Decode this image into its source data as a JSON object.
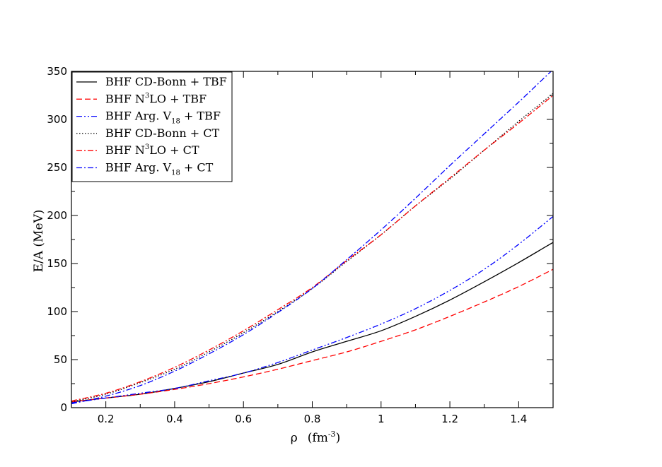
{
  "chart_data": {
    "type": "line",
    "xlabel": {
      "main": "ρ",
      "unit_prefix": "(fm",
      "unit_exp": "-3",
      "unit_suffix": ")"
    },
    "ylabel": "E/A  (MeV)",
    "xlim": [
      0.1,
      1.5
    ],
    "ylim": [
      0,
      350
    ],
    "xticks": [
      0.2,
      0.4,
      0.6,
      0.8,
      1.0,
      1.2,
      1.4
    ],
    "xtick_labels": [
      "0.2",
      "0.4",
      "0.6",
      "0.8",
      "1",
      "1.2",
      "1.4"
    ],
    "yticks": [
      0,
      50,
      100,
      150,
      200,
      250,
      300,
      350
    ],
    "ytick_labels": [
      "0",
      "50",
      "100",
      "150",
      "200",
      "250",
      "300",
      "350"
    ],
    "grid": false,
    "legend_position": "top-left",
    "x": [
      0.1,
      0.2,
      0.3,
      0.4,
      0.5,
      0.6,
      0.7,
      0.8,
      0.9,
      1.0,
      1.1,
      1.2,
      1.3,
      1.4,
      1.5
    ],
    "series": [
      {
        "name": "BHF CD-Bonn + TBF",
        "name_parts": [
          "BHF CD-Bonn + TBF",
          "",
          ""
        ],
        "sup": "",
        "sub": "",
        "color": "#000000",
        "dash": "solid",
        "values": [
          6,
          10,
          14,
          20,
          27,
          36,
          45,
          58,
          69,
          80,
          95,
          112,
          131,
          151,
          172
        ]
      },
      {
        "name": "BHF N3LO + TBF",
        "name_parts": [
          "BHF N",
          "LO + TBF",
          ""
        ],
        "sup": "3",
        "sub": "",
        "color": "#ff0000",
        "dash": "dashed",
        "values": [
          6,
          10,
          14,
          19,
          25,
          32,
          40,
          49,
          58,
          69,
          81,
          95,
          110,
          126,
          144
        ]
      },
      {
        "name": "BHF Arg. V18 + TBF",
        "name_parts": [
          "BHF Arg. V",
          "",
          " + TBF"
        ],
        "sup": "",
        "sub": "18",
        "color": "#0000ff",
        "dash": "dashdotdot",
        "values": [
          5,
          10,
          15,
          20,
          28,
          36,
          47,
          60,
          73,
          87,
          103,
          122,
          144,
          170,
          199
        ]
      },
      {
        "name": "BHF CD-Bonn + CT",
        "name_parts": [
          "BHF CD-Bonn + CT",
          "",
          ""
        ],
        "sup": "",
        "sub": "",
        "color": "#000000",
        "dash": "dotted",
        "values": [
          6,
          14,
          26,
          40,
          58,
          78,
          100,
          124,
          152,
          180,
          210,
          238,
          268,
          298,
          327
        ]
      },
      {
        "name": "BHF N3LO + CT",
        "name_parts": [
          "BHF N",
          "LO + CT",
          ""
        ],
        "sup": "3",
        "sub": "",
        "color": "#ff0000",
        "dash": "dashdot",
        "values": [
          7,
          15,
          27,
          42,
          60,
          80,
          102,
          125,
          153,
          180,
          210,
          239,
          268,
          296,
          325
        ]
      },
      {
        "name": "BHF Arg. V18 + CT",
        "name_parts": [
          "BHF Arg. V",
          "",
          " + CT"
        ],
        "sup": "",
        "sub": "18",
        "color": "#0000ff",
        "dash": "dashdot",
        "values": [
          4,
          12,
          23,
          38,
          56,
          76,
          99,
          124,
          154,
          185,
          218,
          252,
          285,
          318,
          352
        ]
      }
    ]
  }
}
